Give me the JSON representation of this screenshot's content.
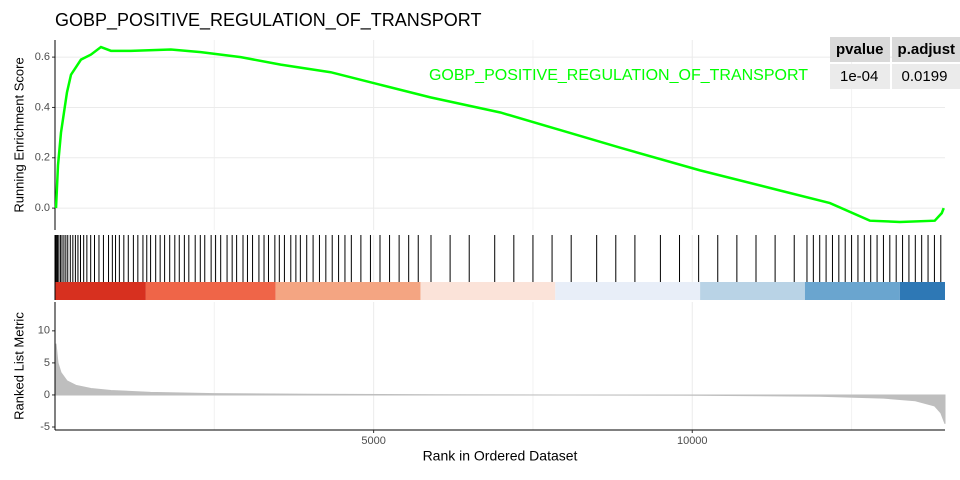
{
  "chart_data": [
    {
      "type": "line",
      "title": "GOBP_POSITIVE_REGULATION_OF_TRANSPORT",
      "ylabel": "Running Enrichment Score",
      "xlim": [
        0,
        13966
      ],
      "ylim": [
        -0.087,
        0.668
      ],
      "yticks": [
        {
          "value": 0,
          "label": "0.0"
        },
        0.2,
        0.4,
        0.6
      ],
      "x": [
        16,
        47,
        94,
        141,
        188,
        251,
        329,
        407,
        564,
        721,
        878,
        1191,
        1818,
        2288,
        2915,
        3541,
        4325,
        5108,
        5892,
        6989,
        7929,
        8869,
        10123,
        11376,
        12160,
        12787,
        13257,
        13805,
        13915,
        13946
      ],
      "series": [
        {
          "name": "GOBP_POSITIVE_REGULATION_OF_TRANSPORT",
          "color": "#00ff00",
          "values": [
            0.0,
            0.17,
            0.3,
            0.38,
            0.46,
            0.53,
            0.56,
            0.59,
            0.61,
            0.64,
            0.625,
            0.625,
            0.63,
            0.62,
            0.6,
            0.57,
            0.54,
            0.49,
            0.44,
            0.38,
            0.31,
            0.24,
            0.15,
            0.07,
            0.02,
            -0.05,
            -0.055,
            -0.05,
            -0.02,
            0.0
          ]
        }
      ]
    },
    {
      "type": "barcode",
      "xlim": [
        0,
        13966
      ],
      "hits": [
        10,
        25,
        40,
        60,
        85,
        110,
        140,
        170,
        200,
        240,
        280,
        320,
        360,
        400,
        450,
        500,
        560,
        620,
        690,
        760,
        840,
        900,
        950,
        1010,
        1080,
        1150,
        1230,
        1300,
        1380,
        1440,
        1500,
        1580,
        1650,
        1720,
        1800,
        1880,
        1950,
        2030,
        2100,
        2200,
        2280,
        2350,
        2450,
        2520,
        2600,
        2700,
        2780,
        2850,
        2950,
        3020,
        3100,
        3200,
        3280,
        3350,
        3450,
        3520,
        3600,
        3700,
        3780,
        3850,
        3950,
        4050,
        4150,
        4250,
        4350,
        4450,
        4550,
        4650,
        4800,
        4950,
        5100,
        5250,
        5400,
        5550,
        5700,
        5900,
        6200,
        6500,
        6900,
        7200,
        7500,
        7800,
        8100,
        8500,
        8800,
        9100,
        9500,
        9800,
        10100,
        10400,
        10700,
        11000,
        11300,
        11600,
        11800,
        11900,
        12000,
        12100,
        12200,
        12300,
        12400,
        12500,
        12600,
        12700,
        12800,
        12900,
        13000,
        13100,
        13200,
        13300,
        13400,
        13500,
        13600,
        13700,
        13800,
        13900
      ],
      "band_edges": [
        0,
        1426,
        3463,
        5735,
        7851,
        10123,
        11768,
        13257,
        13966
      ],
      "band_colors": [
        "#d7301f",
        "#ef6548",
        "#f4a582",
        "#fbe3d9",
        "#e8eef8",
        "#b9d3e6",
        "#6aa5cf",
        "#2e78b5"
      ]
    },
    {
      "type": "area",
      "ylabel": "Ranked List Metric",
      "xlabel": "Rank in Ordered Dataset",
      "color": "#bebebe",
      "xlim": [
        0,
        13966
      ],
      "ylim": [
        -5.47,
        14.5
      ],
      "yticks": [
        -5,
        0,
        5,
        10
      ],
      "xticks": [
        5000,
        10000
      ],
      "minor_xticks": [
        2500,
        7500,
        12500
      ],
      "x": [
        16,
        47,
        94,
        188,
        329,
        564,
        878,
        1500,
        2500,
        4000,
        6000,
        8000,
        10000,
        12000,
        13000,
        13500,
        13800,
        13900,
        13966
      ],
      "values": [
        8,
        5,
        3.5,
        2.2,
        1.5,
        1.0,
        0.7,
        0.4,
        0.2,
        0.1,
        0.03,
        0,
        -0.05,
        -0.2,
        -0.5,
        -0.9,
        -1.7,
        -2.8,
        -4.5
      ]
    }
  ],
  "table": {
    "header": [
      "pvalue",
      "p.adjust"
    ],
    "rows": [
      [
        "1e-04",
        "0.0199"
      ]
    ]
  }
}
